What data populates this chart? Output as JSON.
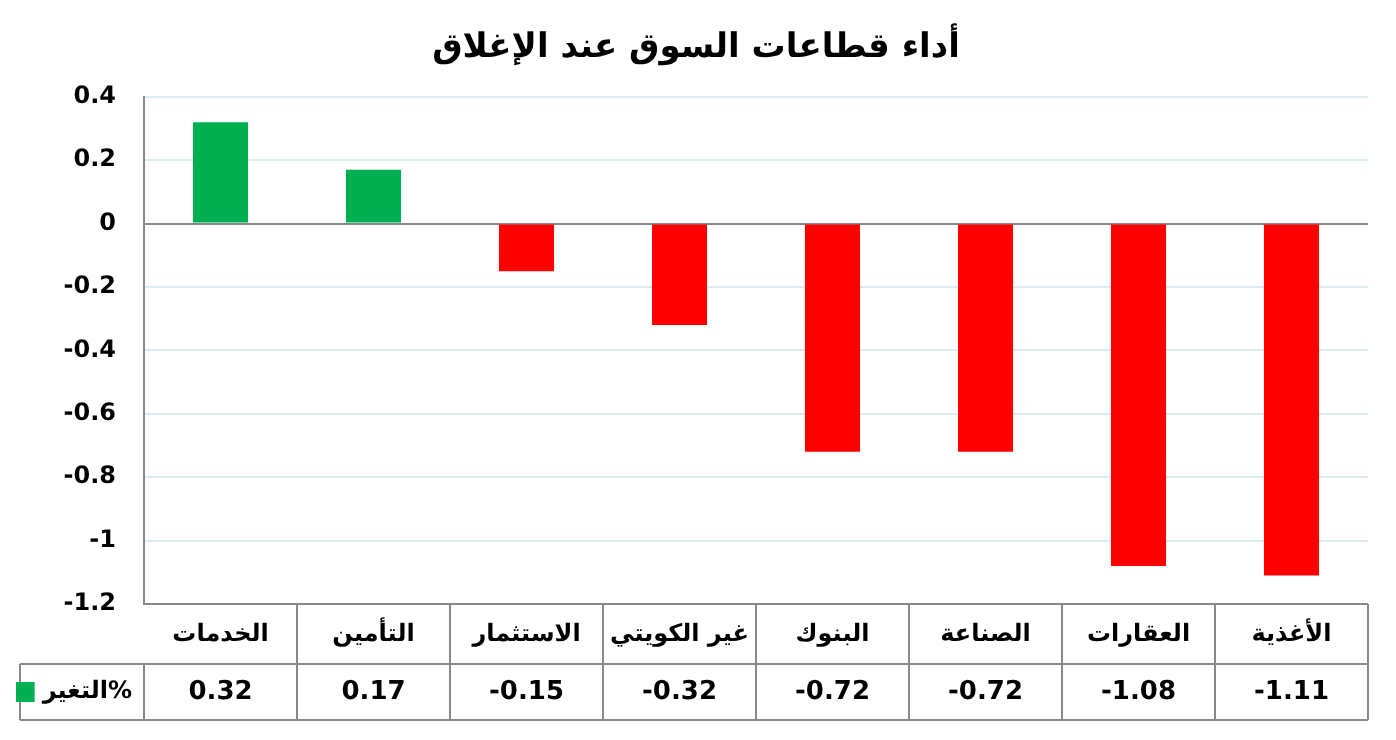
{
  "chart_data": {
    "type": "bar",
    "title": "أداء قطاعات السوق عند الإغلاق",
    "categories": [
      "الخدمات",
      "التأمين",
      "الاستثمار",
      "غير الكويتي",
      "البنوك",
      "الصناعة",
      "العقارات",
      "الأغذية"
    ],
    "series": [
      {
        "name": "التغير%",
        "color": "#00b050",
        "colors": [
          "#00b050",
          "#00b050",
          "#ff0000",
          "#ff0000",
          "#ff0000",
          "#ff0000",
          "#ff0000",
          "#ff0000"
        ],
        "values": [
          0.32,
          0.17,
          -0.15,
          -0.32,
          -0.72,
          -0.72,
          -1.08,
          -1.11
        ]
      }
    ],
    "ylim": [
      -1.2,
      0.4
    ],
    "yticks": [
      -1.2,
      -1,
      -0.8,
      -0.6,
      -0.4,
      -0.2,
      0,
      0.2,
      0.4
    ],
    "grid": "y",
    "data_labels": true
  }
}
